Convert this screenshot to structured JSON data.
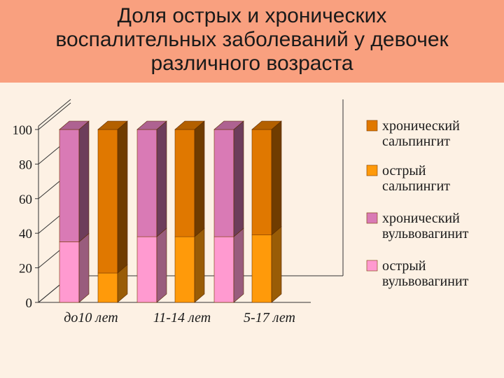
{
  "title_lines": [
    "Доля острых и хронических",
    "воспалительных заболеваний у девочек",
    "различного возраста"
  ],
  "colors": {
    "header_bg": "#f9a07f",
    "page_bg": "#fdf1e4",
    "chronic_salpingitis": "#e07800",
    "acute_salpingitis": "#ff9a0a",
    "chronic_vulvovaginitis": "#d97ab5",
    "acute_vulvovaginitis": "#ff9ad0"
  },
  "chart_data": {
    "type": "bar",
    "stacked": true,
    "style": "3d-column",
    "categories": [
      "до10 лет",
      "11-14 лет",
      "5-17 лет"
    ],
    "ylim": [
      0,
      100
    ],
    "yticks": [
      "0",
      "20",
      "40",
      "60",
      "80",
      "100"
    ],
    "grid": false,
    "legend_position": "right",
    "bars": [
      {
        "group": 0,
        "kind": "vulvovaginitis",
        "acute": 35,
        "chronic": 65
      },
      {
        "group": 0,
        "kind": "salpingitis",
        "acute": 17,
        "chronic": 83
      },
      {
        "group": 1,
        "kind": "vulvovaginitis",
        "acute": 38,
        "chronic": 62
      },
      {
        "group": 1,
        "kind": "salpingitis",
        "acute": 38,
        "chronic": 62
      },
      {
        "group": 2,
        "kind": "vulvovaginitis",
        "acute": 38,
        "chronic": 62
      },
      {
        "group": 2,
        "kind": "salpingitis",
        "acute": 39,
        "chronic": 61
      }
    ],
    "legend": [
      {
        "key": "chronic_salpingitis",
        "lines": [
          "хронический",
          "сальпингит"
        ]
      },
      {
        "key": "acute_salpingitis",
        "lines": [
          "острый",
          "сальпингит"
        ]
      },
      {
        "key": "chronic_vulvovaginitis",
        "lines": [
          "хронический",
          "вульвовагинит"
        ]
      },
      {
        "key": "acute_vulvovaginitis",
        "lines": [
          "острый",
          "вульвовагинит"
        ]
      }
    ]
  }
}
